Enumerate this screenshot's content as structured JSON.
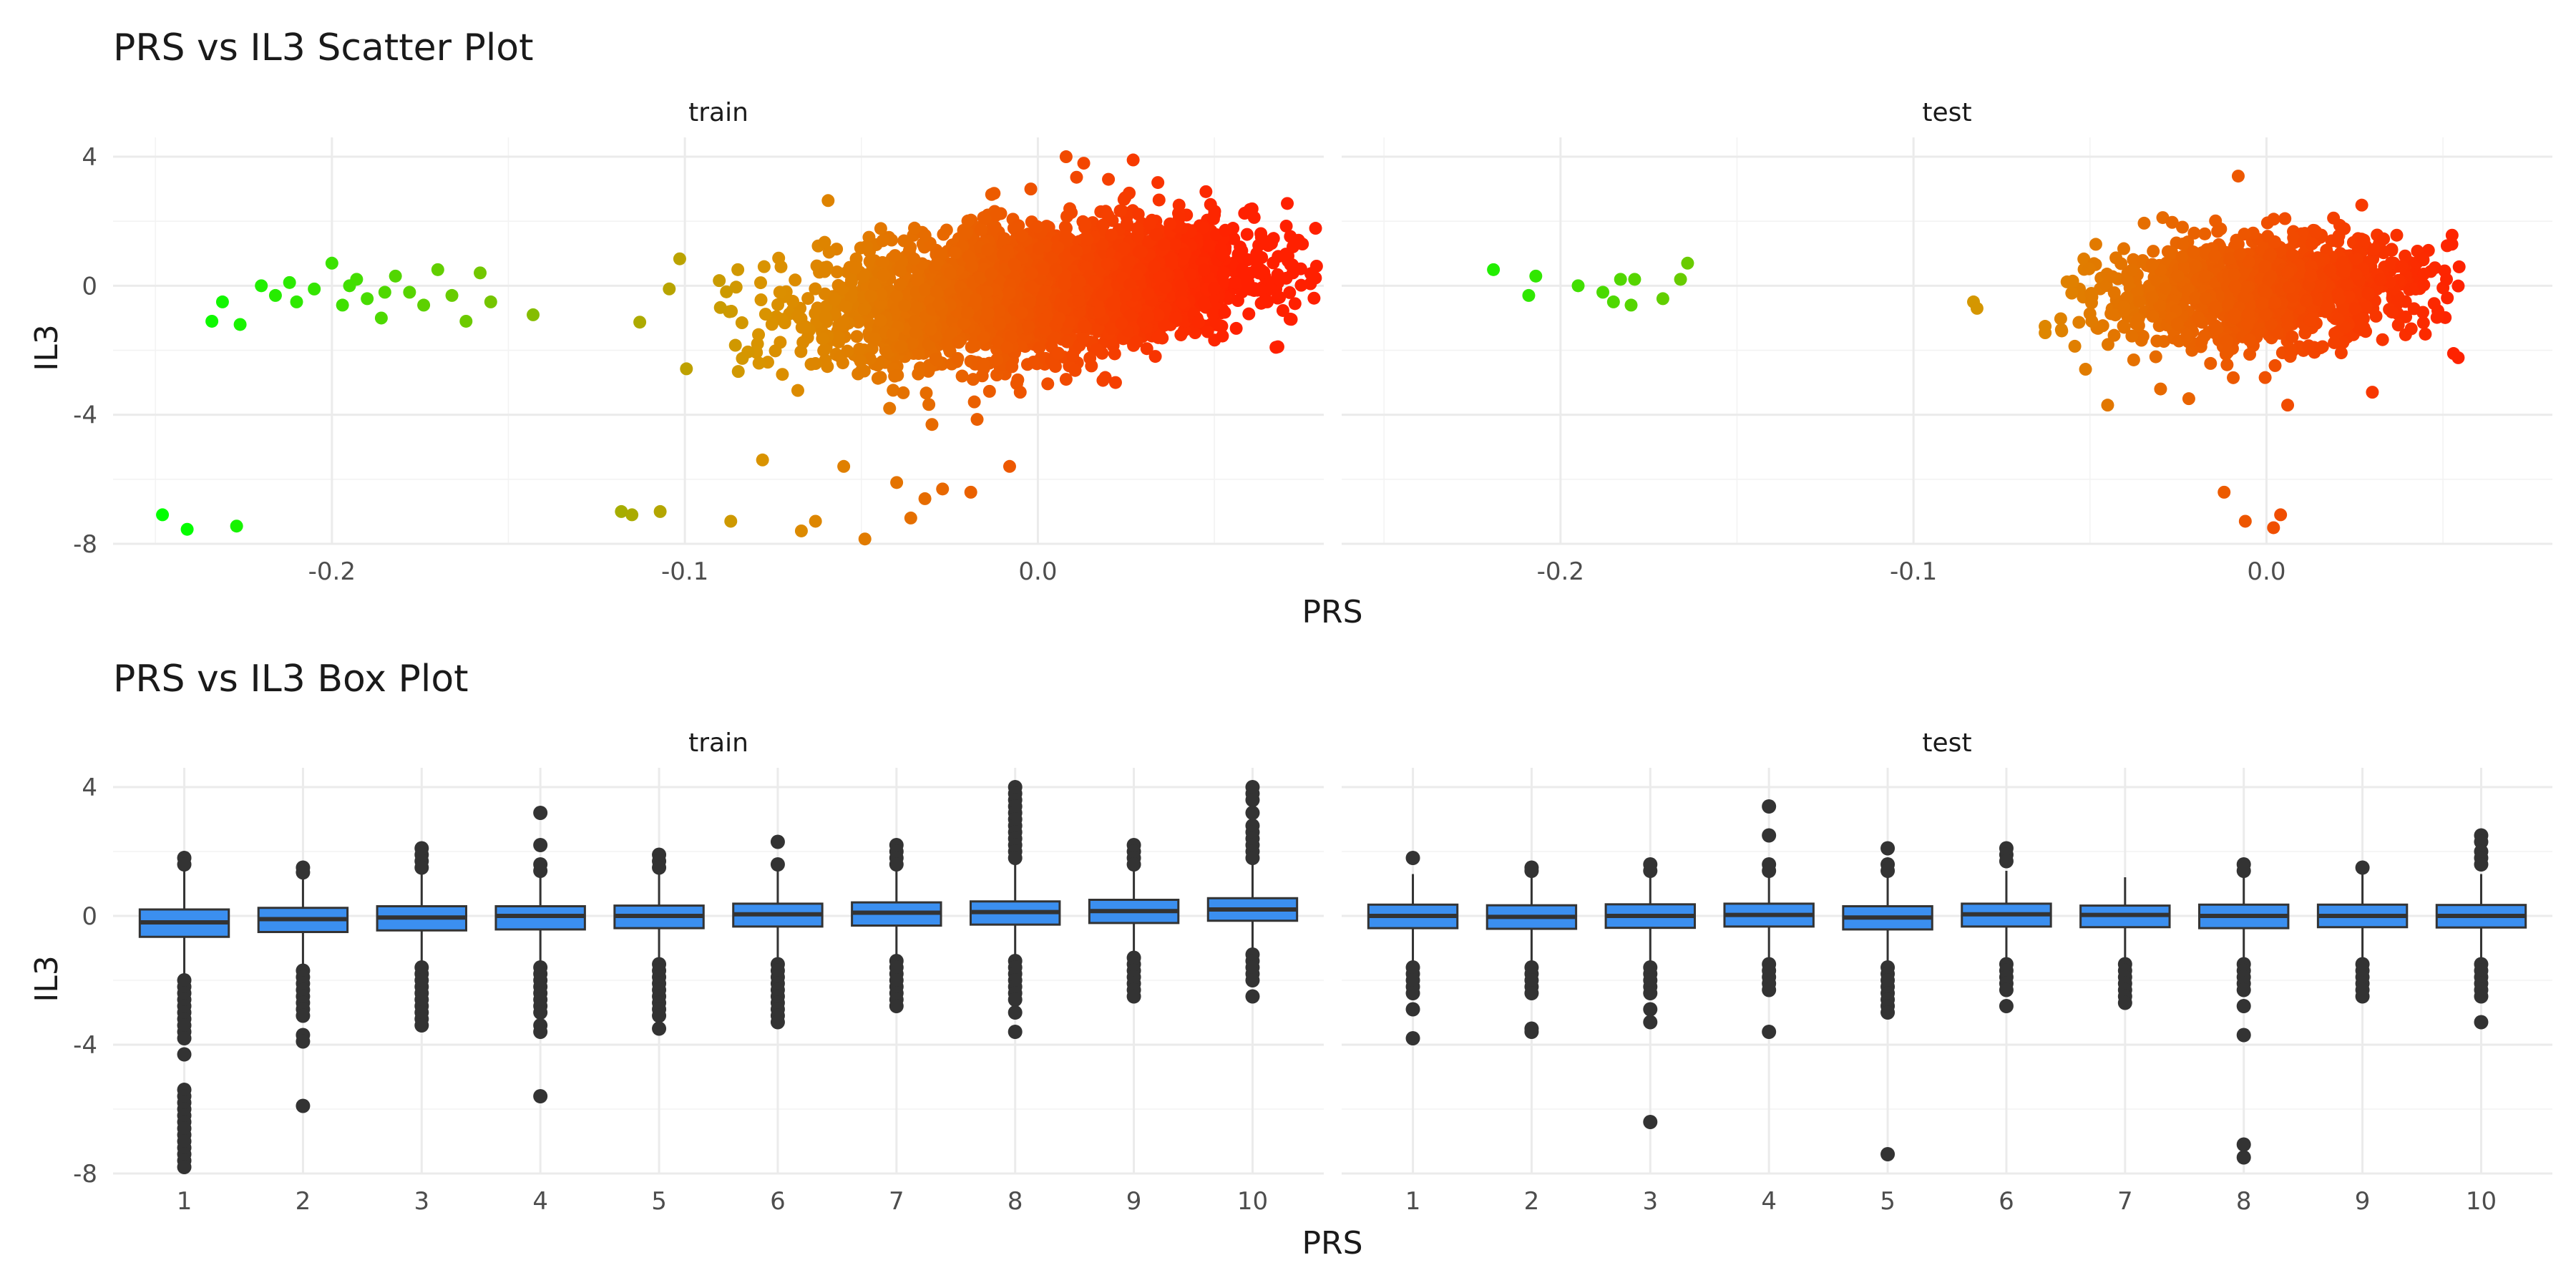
{
  "chart_data": [
    {
      "type": "scatter",
      "title": "PRS vs IL3 Scatter Plot",
      "xlabel": "PRS",
      "ylabel": "IL3",
      "ylim": [
        -8,
        4.6
      ],
      "yticks": [
        {
          "value": 4,
          "label": "4"
        },
        {
          "value": 0,
          "label": "0"
        },
        {
          "value": -4,
          "label": "-4"
        },
        {
          "value": -8,
          "label": "-8"
        }
      ],
      "grid": true,
      "color_gradient": {
        "low": "#00ff00",
        "mid": "#d99400",
        "high": "#ff2000"
      },
      "panels": [
        {
          "name": "train",
          "xlim": [
            -0.262,
            0.081
          ],
          "xticks": [
            {
              "value": -0.2,
              "label": "-0.2"
            },
            {
              "value": -0.1,
              "label": "-0.1"
            },
            {
              "value": 0.0,
              "label": "0.0"
            }
          ],
          "minor_xticks": [
            -0.25,
            -0.15,
            -0.05,
            0.05
          ],
          "points": [
            [
              -0.248,
              -7.1
            ],
            [
              -0.241,
              -7.55
            ],
            [
              -0.227,
              -7.45
            ],
            [
              -0.234,
              -1.1
            ],
            [
              -0.231,
              -0.5
            ],
            [
              -0.226,
              -1.2
            ],
            [
              -0.22,
              0.0
            ],
            [
              -0.216,
              -0.3
            ],
            [
              -0.21,
              -0.5
            ],
            [
              -0.205,
              -0.1
            ],
            [
              -0.2,
              0.7
            ],
            [
              -0.197,
              -0.6
            ],
            [
              -0.193,
              0.2
            ],
            [
              -0.19,
              -0.4
            ],
            [
              -0.186,
              -1.0
            ],
            [
              -0.182,
              0.3
            ],
            [
              -0.178,
              -0.2
            ],
            [
              -0.174,
              -0.6
            ],
            [
              -0.17,
              0.5
            ],
            [
              -0.166,
              -0.3
            ],
            [
              -0.162,
              -1.1
            ],
            [
              -0.158,
              0.4
            ],
            [
              -0.155,
              -0.5
            ],
            [
              -0.143,
              -0.9
            ],
            [
              -0.212,
              0.1
            ],
            [
              -0.195,
              0.0
            ],
            [
              -0.185,
              -0.2
            ],
            [
              -0.118,
              -7.0
            ],
            [
              -0.115,
              -7.1
            ],
            [
              -0.107,
              -7.0
            ],
            [
              -0.087,
              -7.3
            ],
            [
              -0.085,
              0.5
            ],
            [
              -0.079,
              -2.4
            ],
            [
              -0.078,
              -5.4
            ],
            [
              -0.067,
              -7.6
            ],
            [
              -0.063,
              -7.3
            ],
            [
              -0.055,
              -5.6
            ],
            [
              -0.049,
              -7.85
            ],
            [
              -0.04,
              -6.1
            ],
            [
              -0.036,
              -7.2
            ],
            [
              -0.032,
              -6.6
            ],
            [
              -0.027,
              -6.3
            ],
            [
              -0.019,
              -6.4
            ],
            [
              -0.008,
              -5.6
            ],
            [
              -0.042,
              -3.8
            ],
            [
              -0.03,
              -4.3
            ],
            [
              -0.018,
              -3.6
            ],
            [
              -0.005,
              -3.3
            ],
            [
              0.008,
              -2.9
            ],
            [
              0.022,
              -3.0
            ],
            [
              0.008,
              4.0
            ],
            [
              0.013,
              3.8
            ],
            [
              0.027,
              3.9
            ],
            [
              0.02,
              3.3
            ],
            [
              0.034,
              3.2
            ],
            [
              0.04,
              2.5
            ],
            [
              0.05,
              2.2
            ],
            [
              -0.002,
              3.0
            ],
            [
              -0.015,
              2.1
            ],
            [
              0.062,
              1.0
            ],
            [
              0.066,
              -0.1
            ],
            [
              0.065,
              -0.5
            ],
            [
              0.058,
              0.5
            ]
          ],
          "clouds": [
            {
              "center": [
                0.0,
                -0.15
              ],
              "sx": 0.03,
              "sy": 0.95,
              "slope": 10,
              "n": 3200
            }
          ]
        },
        {
          "name": "test",
          "xlim": [
            -0.262,
            0.081
          ],
          "xticks": [
            {
              "value": -0.2,
              "label": "-0.2"
            },
            {
              "value": -0.1,
              "label": "-0.1"
            },
            {
              "value": 0.0,
              "label": "0.0"
            }
          ],
          "minor_xticks": [
            -0.25,
            -0.15,
            -0.05,
            0.05
          ],
          "points": [
            [
              -0.219,
              0.5
            ],
            [
              -0.207,
              0.3
            ],
            [
              -0.209,
              -0.3
            ],
            [
              -0.195,
              0.0
            ],
            [
              -0.188,
              -0.2
            ],
            [
              -0.183,
              0.2
            ],
            [
              -0.179,
              0.2
            ],
            [
              -0.18,
              -0.6
            ],
            [
              -0.185,
              -0.5
            ],
            [
              -0.171,
              -0.4
            ],
            [
              -0.166,
              0.2
            ],
            [
              -0.164,
              0.7
            ],
            [
              -0.083,
              -0.5
            ],
            [
              -0.082,
              -0.7
            ],
            [
              -0.012,
              -6.4
            ],
            [
              -0.006,
              -7.3
            ],
            [
              0.002,
              -7.5
            ],
            [
              0.004,
              -7.1
            ],
            [
              -0.008,
              3.4
            ],
            [
              0.019,
              2.1
            ],
            [
              0.027,
              2.5
            ],
            [
              0.051,
              0.2
            ],
            [
              0.053,
              -2.1
            ],
            [
              0.03,
              -3.3
            ],
            [
              -0.03,
              -3.2
            ],
            [
              -0.045,
              -3.7
            ],
            [
              -0.022,
              -3.5
            ],
            [
              0.006,
              -3.7
            ],
            [
              -0.058,
              -1.4
            ],
            [
              0.045,
              -1.5
            ]
          ],
          "clouds": [
            {
              "center": [
                -0.002,
                -0.15
              ],
              "sx": 0.022,
              "sy": 0.8,
              "slope": 6,
              "n": 1300
            }
          ]
        }
      ]
    },
    {
      "type": "box",
      "title": "PRS vs IL3 Box Plot",
      "xlabel": "PRS",
      "ylabel": "IL3",
      "ylim": [
        -8,
        4.6
      ],
      "yticks": [
        {
          "value": 4,
          "label": "4"
        },
        {
          "value": 0,
          "label": "0"
        },
        {
          "value": -4,
          "label": "-4"
        },
        {
          "value": -8,
          "label": "-8"
        }
      ],
      "categories": [
        "1",
        "2",
        "3",
        "4",
        "5",
        "6",
        "7",
        "8",
        "9",
        "10"
      ],
      "box_color": "#3b8ff0",
      "panels": [
        {
          "name": "train",
          "boxes": [
            {
              "q1": -0.65,
              "median": -0.2,
              "q3": 0.2,
              "whisker_low": -1.9,
              "whisker_high": 1.5,
              "outliers": [
                1.8,
                1.6,
                -2.0,
                -2.2,
                -2.4,
                -2.6,
                -2.8,
                -3.0,
                -3.2,
                -3.4,
                -3.6,
                -3.8,
                -4.3,
                -5.4,
                -5.6,
                -5.8,
                -6.0,
                -6.2,
                -6.4,
                -6.6,
                -6.8,
                -7.0,
                -7.2,
                -7.4,
                -7.6,
                -7.8
              ]
            },
            {
              "q1": -0.5,
              "median": -0.1,
              "q3": 0.25,
              "whisker_low": -1.5,
              "whisker_high": 1.3,
              "outliers": [
                1.5,
                1.35,
                -1.7,
                -1.9,
                -2.1,
                -2.3,
                -2.5,
                -2.7,
                -2.9,
                -3.1,
                -3.7,
                -3.9,
                -5.9
              ]
            },
            {
              "q1": -0.45,
              "median": -0.05,
              "q3": 0.3,
              "whisker_low": -1.4,
              "whisker_high": 1.3,
              "outliers": [
                2.1,
                1.9,
                1.7,
                1.5,
                -1.6,
                -1.8,
                -2.0,
                -2.2,
                -2.4,
                -2.6,
                -2.8,
                -3.0,
                -3.2,
                -3.4
              ]
            },
            {
              "q1": -0.42,
              "median": 0.0,
              "q3": 0.3,
              "whisker_low": -1.4,
              "whisker_high": 1.3,
              "outliers": [
                3.2,
                2.2,
                1.6,
                1.4,
                -1.6,
                -1.8,
                -2.0,
                -2.2,
                -2.4,
                -2.6,
                -2.8,
                -3.0,
                -3.4,
                -3.6,
                -5.6
              ]
            },
            {
              "q1": -0.38,
              "median": 0.0,
              "q3": 0.32,
              "whisker_low": -1.4,
              "whisker_high": 1.4,
              "outliers": [
                1.9,
                1.7,
                1.5,
                -1.5,
                -1.7,
                -1.9,
                -2.1,
                -2.3,
                -2.5,
                -2.7,
                -2.9,
                -3.1,
                -3.5
              ]
            },
            {
              "q1": -0.33,
              "median": 0.05,
              "q3": 0.38,
              "whisker_low": -1.4,
              "whisker_high": 1.4,
              "outliers": [
                2.3,
                1.6,
                -1.5,
                -1.7,
                -1.9,
                -2.1,
                -2.3,
                -2.5,
                -2.7,
                -2.9,
                -3.1,
                -3.3
              ]
            },
            {
              "q1": -0.3,
              "median": 0.1,
              "q3": 0.42,
              "whisker_low": -1.3,
              "whisker_high": 1.5,
              "outliers": [
                2.2,
                2.0,
                1.8,
                1.6,
                -1.4,
                -1.6,
                -1.8,
                -2.0,
                -2.2,
                -2.4,
                -2.6,
                -2.8
              ]
            },
            {
              "q1": -0.27,
              "median": 0.12,
              "q3": 0.45,
              "whisker_low": -1.3,
              "whisker_high": 1.6,
              "outliers": [
                4.0,
                3.8,
                3.6,
                3.4,
                3.2,
                3.0,
                2.8,
                2.6,
                2.4,
                2.2,
                2.0,
                1.8,
                -1.4,
                -1.6,
                -1.8,
                -2.0,
                -2.2,
                -2.4,
                -2.6,
                -3.0,
                -3.6
              ]
            },
            {
              "q1": -0.22,
              "median": 0.15,
              "q3": 0.5,
              "whisker_low": -1.2,
              "whisker_high": 1.5,
              "outliers": [
                2.2,
                2.0,
                1.8,
                1.6,
                -1.3,
                -1.5,
                -1.7,
                -1.9,
                -2.1,
                -2.3,
                -2.5
              ]
            },
            {
              "q1": -0.15,
              "median": 0.2,
              "q3": 0.55,
              "whisker_low": -1.1,
              "whisker_high": 1.6,
              "outliers": [
                4.0,
                3.8,
                3.6,
                3.2,
                2.8,
                2.6,
                2.4,
                2.2,
                2.0,
                1.8,
                -1.2,
                -1.4,
                -1.6,
                -1.8,
                -2.0,
                -2.5
              ]
            }
          ]
        },
        {
          "name": "test",
          "boxes": [
            {
              "q1": -0.38,
              "median": 0.0,
              "q3": 0.35,
              "whisker_low": -1.4,
              "whisker_high": 1.3,
              "outliers": [
                1.8,
                -1.6,
                -1.8,
                -2.0,
                -2.2,
                -2.4,
                -2.9,
                -3.8
              ]
            },
            {
              "q1": -0.4,
              "median": -0.03,
              "q3": 0.33,
              "whisker_low": -1.4,
              "whisker_high": 1.2,
              "outliers": [
                1.5,
                1.4,
                -1.6,
                -1.8,
                -2.0,
                -2.2,
                -2.4,
                -3.5,
                -3.6
              ]
            },
            {
              "q1": -0.37,
              "median": 0.0,
              "q3": 0.36,
              "whisker_low": -1.4,
              "whisker_high": 1.3,
              "outliers": [
                1.6,
                1.4,
                -1.6,
                -1.8,
                -2.0,
                -2.2,
                -2.4,
                -2.9,
                -3.3,
                -6.4
              ]
            },
            {
              "q1": -0.33,
              "median": 0.03,
              "q3": 0.38,
              "whisker_low": -1.3,
              "whisker_high": 1.3,
              "outliers": [
                3.4,
                2.5,
                1.6,
                1.4,
                -1.5,
                -1.7,
                -1.9,
                -2.1,
                -2.3,
                -3.6
              ]
            },
            {
              "q1": -0.42,
              "median": -0.05,
              "q3": 0.3,
              "whisker_low": -1.4,
              "whisker_high": 1.3,
              "outliers": [
                2.1,
                1.6,
                1.4,
                -1.6,
                -1.8,
                -2.0,
                -2.2,
                -2.4,
                -2.6,
                -2.8,
                -3.0,
                -7.4
              ]
            },
            {
              "q1": -0.33,
              "median": 0.05,
              "q3": 0.38,
              "whisker_low": -1.3,
              "whisker_high": 1.4,
              "outliers": [
                2.1,
                1.9,
                1.7,
                -1.5,
                -1.7,
                -1.9,
                -2.1,
                -2.3,
                -2.8
              ]
            },
            {
              "q1": -0.35,
              "median": 0.03,
              "q3": 0.32,
              "whisker_low": -1.3,
              "whisker_high": 1.2,
              "outliers": [
                -1.5,
                -1.7,
                -1.9,
                -2.1,
                -2.3,
                -2.5,
                -2.7
              ]
            },
            {
              "q1": -0.38,
              "median": 0.0,
              "q3": 0.35,
              "whisker_low": -1.3,
              "whisker_high": 1.3,
              "outliers": [
                1.6,
                1.4,
                -1.5,
                -1.7,
                -1.9,
                -2.1,
                -2.3,
                -2.8,
                -3.7,
                -7.1,
                -7.5
              ]
            },
            {
              "q1": -0.35,
              "median": 0.0,
              "q3": 0.35,
              "whisker_low": -1.3,
              "whisker_high": 1.3,
              "outliers": [
                1.5,
                -1.5,
                -1.7,
                -1.9,
                -2.1,
                -2.3,
                -2.5
              ]
            },
            {
              "q1": -0.36,
              "median": 0.0,
              "q3": 0.34,
              "whisker_low": -1.3,
              "whisker_high": 1.3,
              "outliers": [
                2.5,
                2.3,
                2.0,
                1.8,
                1.6,
                -1.5,
                -1.7,
                -1.9,
                -2.1,
                -2.3,
                -2.5,
                -3.3
              ]
            }
          ]
        }
      ]
    }
  ]
}
